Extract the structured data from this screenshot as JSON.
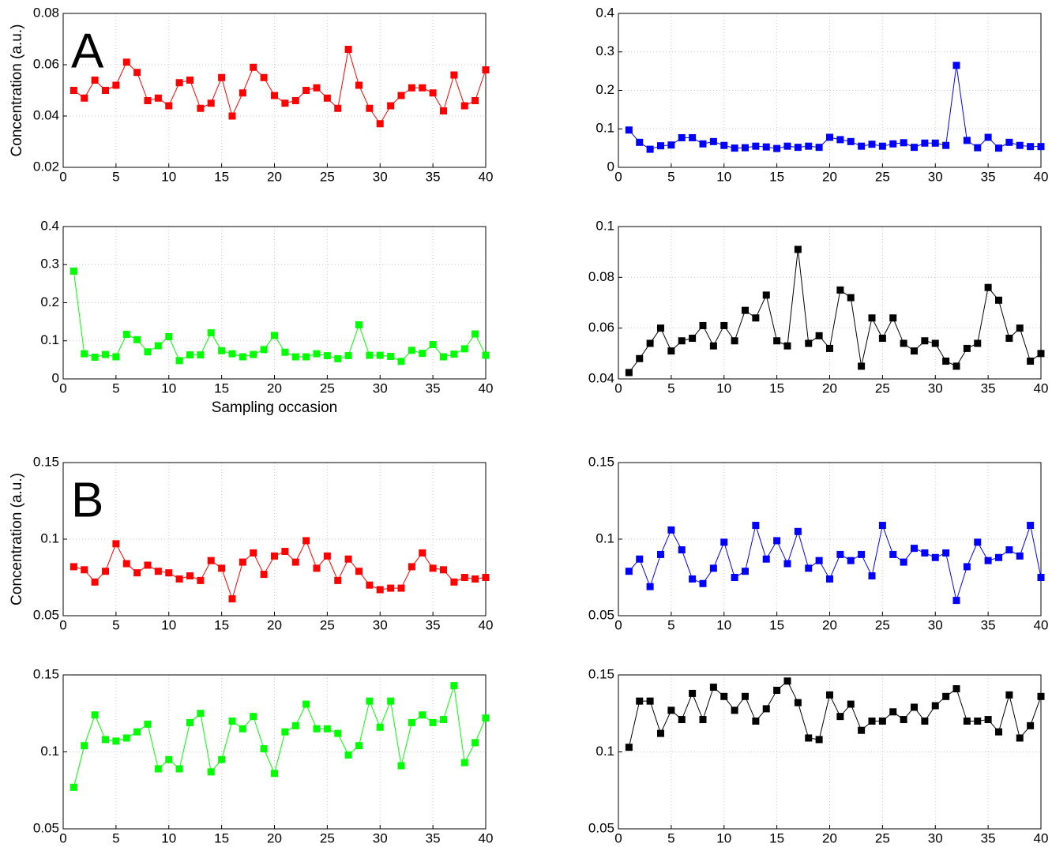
{
  "chart_data": [
    {
      "type": "line",
      "panel_label": "A",
      "ylabel": "Concentration (a.u.)",
      "color": "#ff0000",
      "grid": true,
      "x": [
        1,
        2,
        3,
        4,
        5,
        6,
        7,
        8,
        9,
        10,
        11,
        12,
        13,
        14,
        15,
        16,
        17,
        18,
        19,
        20,
        21,
        22,
        23,
        24,
        25,
        26,
        27,
        28,
        29,
        30,
        31,
        32,
        33,
        34,
        35,
        36,
        37,
        38,
        39,
        40
      ],
      "values": [
        0.05,
        0.047,
        0.054,
        0.05,
        0.052,
        0.061,
        0.057,
        0.046,
        0.047,
        0.044,
        0.053,
        0.054,
        0.043,
        0.045,
        0.055,
        0.04,
        0.049,
        0.059,
        0.055,
        0.048,
        0.045,
        0.046,
        0.05,
        0.051,
        0.047,
        0.043,
        0.066,
        0.052,
        0.043,
        0.037,
        0.044,
        0.048,
        0.051,
        0.051,
        0.049,
        0.042,
        0.056,
        0.044,
        0.046,
        0.058
      ],
      "xlim": [
        0,
        40
      ],
      "xticks": [
        0,
        5,
        10,
        15,
        20,
        25,
        30,
        35,
        40
      ],
      "ylim": [
        0.02,
        0.08
      ],
      "yticks": [
        0.02,
        0.04,
        0.06,
        0.08
      ]
    },
    {
      "type": "line",
      "color": "#0000ff",
      "grid": true,
      "x": [
        1,
        2,
        3,
        4,
        5,
        6,
        7,
        8,
        9,
        10,
        11,
        12,
        13,
        14,
        15,
        16,
        17,
        18,
        19,
        20,
        21,
        22,
        23,
        24,
        25,
        26,
        27,
        28,
        29,
        30,
        31,
        32,
        33,
        34,
        35,
        36,
        37,
        38,
        39,
        40
      ],
      "values": [
        0.097,
        0.065,
        0.047,
        0.056,
        0.058,
        0.077,
        0.077,
        0.061,
        0.067,
        0.057,
        0.05,
        0.051,
        0.055,
        0.053,
        0.049,
        0.055,
        0.052,
        0.055,
        0.052,
        0.078,
        0.072,
        0.067,
        0.055,
        0.06,
        0.055,
        0.061,
        0.064,
        0.052,
        0.063,
        0.063,
        0.057,
        0.265,
        0.07,
        0.051,
        0.078,
        0.05,
        0.065,
        0.057,
        0.054,
        0.054
      ],
      "xlim": [
        0,
        40
      ],
      "xticks": [
        0,
        5,
        10,
        15,
        20,
        25,
        30,
        35,
        40
      ],
      "ylim": [
        0,
        0.4
      ],
      "yticks": [
        0,
        0.1,
        0.2,
        0.3,
        0.4
      ]
    },
    {
      "type": "line",
      "xlabel": "Sampling occasion",
      "color": "#00ff00",
      "grid": true,
      "x": [
        1,
        2,
        3,
        4,
        5,
        6,
        7,
        8,
        9,
        10,
        11,
        12,
        13,
        14,
        15,
        16,
        17,
        18,
        19,
        20,
        21,
        22,
        23,
        24,
        25,
        26,
        27,
        28,
        29,
        30,
        31,
        32,
        33,
        34,
        35,
        36,
        37,
        38,
        39,
        40
      ],
      "values": [
        0.283,
        0.066,
        0.057,
        0.064,
        0.058,
        0.117,
        0.103,
        0.071,
        0.087,
        0.111,
        0.048,
        0.063,
        0.063,
        0.121,
        0.074,
        0.066,
        0.058,
        0.064,
        0.077,
        0.114,
        0.07,
        0.058,
        0.058,
        0.066,
        0.061,
        0.053,
        0.061,
        0.142,
        0.062,
        0.062,
        0.059,
        0.046,
        0.075,
        0.067,
        0.09,
        0.058,
        0.065,
        0.079,
        0.118,
        0.062
      ],
      "xlim": [
        0,
        40
      ],
      "xticks": [
        0,
        5,
        10,
        15,
        20,
        25,
        30,
        35,
        40
      ],
      "ylim": [
        0,
        0.4
      ],
      "yticks": [
        0,
        0.1,
        0.2,
        0.3,
        0.4
      ]
    },
    {
      "type": "line",
      "color": "#000000",
      "grid": true,
      "x": [
        1,
        2,
        3,
        4,
        5,
        6,
        7,
        8,
        9,
        10,
        11,
        12,
        13,
        14,
        15,
        16,
        17,
        18,
        19,
        20,
        21,
        22,
        23,
        24,
        25,
        26,
        27,
        28,
        29,
        30,
        31,
        32,
        33,
        34,
        35,
        36,
        37,
        38,
        39,
        40
      ],
      "values": [
        0.0425,
        0.048,
        0.054,
        0.06,
        0.051,
        0.055,
        0.056,
        0.061,
        0.053,
        0.061,
        0.055,
        0.067,
        0.064,
        0.073,
        0.055,
        0.053,
        0.091,
        0.054,
        0.057,
        0.052,
        0.075,
        0.072,
        0.045,
        0.064,
        0.056,
        0.064,
        0.054,
        0.051,
        0.055,
        0.054,
        0.047,
        0.045,
        0.052,
        0.054,
        0.076,
        0.071,
        0.056,
        0.06,
        0.047,
        0.05
      ],
      "xlim": [
        0,
        40
      ],
      "xticks": [
        0,
        5,
        10,
        15,
        20,
        25,
        30,
        35,
        40
      ],
      "ylim": [
        0.04,
        0.1
      ],
      "yticks": [
        0.04,
        0.06,
        0.08,
        0.1
      ]
    },
    {
      "type": "line",
      "panel_label": "B",
      "ylabel": "Concentration (a.u.)",
      "color": "#ff0000",
      "grid": true,
      "x": [
        1,
        2,
        3,
        4,
        5,
        6,
        7,
        8,
        9,
        10,
        11,
        12,
        13,
        14,
        15,
        16,
        17,
        18,
        19,
        20,
        21,
        22,
        23,
        24,
        25,
        26,
        27,
        28,
        29,
        30,
        31,
        32,
        33,
        34,
        35,
        36,
        37,
        38,
        39,
        40
      ],
      "values": [
        0.082,
        0.08,
        0.072,
        0.079,
        0.097,
        0.084,
        0.078,
        0.083,
        0.079,
        0.078,
        0.074,
        0.076,
        0.073,
        0.086,
        0.081,
        0.061,
        0.085,
        0.091,
        0.077,
        0.089,
        0.092,
        0.085,
        0.099,
        0.081,
        0.089,
        0.073,
        0.087,
        0.079,
        0.07,
        0.067,
        0.068,
        0.068,
        0.082,
        0.091,
        0.081,
        0.08,
        0.072,
        0.075,
        0.074,
        0.075
      ],
      "xlim": [
        0,
        40
      ],
      "xticks": [
        0,
        5,
        10,
        15,
        20,
        25,
        30,
        35,
        40
      ],
      "ylim": [
        0.05,
        0.15
      ],
      "yticks": [
        0.05,
        0.1,
        0.15
      ]
    },
    {
      "type": "line",
      "color": "#0000ff",
      "grid": true,
      "x": [
        1,
        2,
        3,
        4,
        5,
        6,
        7,
        8,
        9,
        10,
        11,
        12,
        13,
        14,
        15,
        16,
        17,
        18,
        19,
        20,
        21,
        22,
        23,
        24,
        25,
        26,
        27,
        28,
        29,
        30,
        31,
        32,
        33,
        34,
        35,
        36,
        37,
        38,
        39,
        40
      ],
      "values": [
        0.079,
        0.087,
        0.069,
        0.09,
        0.106,
        0.093,
        0.074,
        0.071,
        0.081,
        0.098,
        0.075,
        0.079,
        0.109,
        0.087,
        0.099,
        0.084,
        0.105,
        0.081,
        0.086,
        0.074,
        0.09,
        0.086,
        0.09,
        0.076,
        0.109,
        0.09,
        0.085,
        0.094,
        0.091,
        0.088,
        0.091,
        0.06,
        0.082,
        0.098,
        0.086,
        0.088,
        0.093,
        0.089,
        0.109,
        0.075
      ],
      "xlim": [
        0,
        40
      ],
      "xticks": [
        0,
        5,
        10,
        15,
        20,
        25,
        30,
        35,
        40
      ],
      "ylim": [
        0.05,
        0.15
      ],
      "yticks": [
        0.05,
        0.1,
        0.15
      ]
    },
    {
      "type": "line",
      "color": "#00ff00",
      "grid": true,
      "x": [
        1,
        2,
        3,
        4,
        5,
        6,
        7,
        8,
        9,
        10,
        11,
        12,
        13,
        14,
        15,
        16,
        17,
        18,
        19,
        20,
        21,
        22,
        23,
        24,
        25,
        26,
        27,
        28,
        29,
        30,
        31,
        32,
        33,
        34,
        35,
        36,
        37,
        38,
        39,
        40
      ],
      "values": [
        0.077,
        0.104,
        0.124,
        0.108,
        0.107,
        0.109,
        0.113,
        0.118,
        0.089,
        0.095,
        0.089,
        0.119,
        0.125,
        0.087,
        0.095,
        0.12,
        0.115,
        0.123,
        0.102,
        0.086,
        0.113,
        0.117,
        0.131,
        0.115,
        0.115,
        0.112,
        0.098,
        0.104,
        0.133,
        0.116,
        0.133,
        0.091,
        0.119,
        0.124,
        0.119,
        0.121,
        0.143,
        0.093,
        0.106,
        0.122
      ],
      "xlim": [
        0,
        40
      ],
      "xticks": [
        0,
        5,
        10,
        15,
        20,
        25,
        30,
        35,
        40
      ],
      "ylim": [
        0.05,
        0.15
      ],
      "yticks": [
        0.05,
        0.1,
        0.15
      ]
    },
    {
      "type": "line",
      "color": "#000000",
      "grid": true,
      "x": [
        1,
        2,
        3,
        4,
        5,
        6,
        7,
        8,
        9,
        10,
        11,
        12,
        13,
        14,
        15,
        16,
        17,
        18,
        19,
        20,
        21,
        22,
        23,
        24,
        25,
        26,
        27,
        28,
        29,
        30,
        31,
        32,
        33,
        34,
        35,
        36,
        37,
        38,
        39,
        40
      ],
      "values": [
        0.103,
        0.133,
        0.133,
        0.112,
        0.127,
        0.121,
        0.138,
        0.121,
        0.142,
        0.136,
        0.127,
        0.136,
        0.12,
        0.128,
        0.14,
        0.146,
        0.132,
        0.109,
        0.108,
        0.137,
        0.123,
        0.131,
        0.114,
        0.12,
        0.12,
        0.126,
        0.121,
        0.129,
        0.12,
        0.13,
        0.136,
        0.141,
        0.12,
        0.12,
        0.121,
        0.113,
        0.137,
        0.109,
        0.117,
        0.136
      ],
      "xlim": [
        0,
        40
      ],
      "xticks": [
        0,
        5,
        10,
        15,
        20,
        25,
        30,
        35,
        40
      ],
      "ylim": [
        0.05,
        0.15
      ],
      "yticks": [
        0.05,
        0.1,
        0.15
      ]
    }
  ]
}
